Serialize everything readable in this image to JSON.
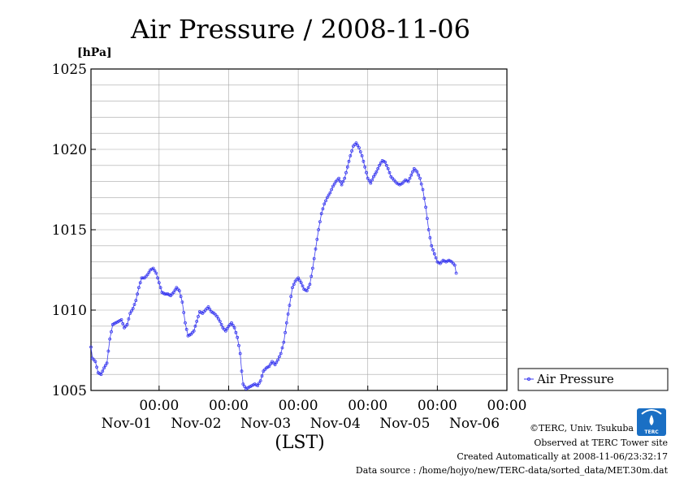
{
  "chart_data": {
    "type": "line",
    "title": "Air Pressure / 2008-11-06",
    "unit_label": "[hPa]",
    "xlabel": "(LST)",
    "ylim": [
      1005,
      1025
    ],
    "y_ticks": [
      "1005",
      "1010",
      "1015",
      "1020",
      "1025"
    ],
    "x_ticks": [
      {
        "time": "00:00",
        "date": "Nov-01",
        "hours": 0
      },
      {
        "time": "00:00",
        "date": "Nov-02",
        "hours": 24
      },
      {
        "time": "00:00",
        "date": "Nov-03",
        "hours": 48
      },
      {
        "time": "00:00",
        "date": "Nov-04",
        "hours": 72
      },
      {
        "time": "00:00",
        "date": "Nov-05",
        "hours": 96
      },
      {
        "time": "00:00",
        "date": "Nov-06",
        "hours": 120
      }
    ],
    "xlim_hours": [
      -23.5,
      120
    ],
    "grid": true,
    "legend_position": "right",
    "series": [
      {
        "name": "Air Pressure",
        "color": "#3a3af0",
        "keypoints": [
          [
            -23.5,
            1007.7
          ],
          [
            -23,
            1007.0
          ],
          [
            -22,
            1006.8
          ],
          [
            -21,
            1006.1
          ],
          [
            -20,
            1006.0
          ],
          [
            -19,
            1006.4
          ],
          [
            -18,
            1006.7
          ],
          [
            -17,
            1008.2
          ],
          [
            -16,
            1009.1
          ],
          [
            -15,
            1009.2
          ],
          [
            -14,
            1009.3
          ],
          [
            -13,
            1009.4
          ],
          [
            -12,
            1008.9
          ],
          [
            -11,
            1009.1
          ],
          [
            -10,
            1009.8
          ],
          [
            -9,
            1010.1
          ],
          [
            -8,
            1010.6
          ],
          [
            -7,
            1011.4
          ],
          [
            -6,
            1012.0
          ],
          [
            -5,
            1012.0
          ],
          [
            -4,
            1012.2
          ],
          [
            -3,
            1012.5
          ],
          [
            -2,
            1012.6
          ],
          [
            -1,
            1012.3
          ],
          [
            0,
            1011.7
          ],
          [
            1,
            1011.1
          ],
          [
            2,
            1011.0
          ],
          [
            3,
            1011.0
          ],
          [
            4,
            1010.9
          ],
          [
            5,
            1011.1
          ],
          [
            6,
            1011.4
          ],
          [
            7,
            1011.2
          ],
          [
            8,
            1010.5
          ],
          [
            9,
            1009.2
          ],
          [
            10,
            1008.4
          ],
          [
            11,
            1008.5
          ],
          [
            12,
            1008.7
          ],
          [
            13,
            1009.3
          ],
          [
            14,
            1009.9
          ],
          [
            15,
            1009.8
          ],
          [
            16,
            1010.0
          ],
          [
            17,
            1010.2
          ],
          [
            18,
            1009.9
          ],
          [
            19,
            1009.8
          ],
          [
            20,
            1009.6
          ],
          [
            21,
            1009.3
          ],
          [
            22,
            1008.9
          ],
          [
            23,
            1008.7
          ],
          [
            24,
            1009.0
          ],
          [
            25,
            1009.2
          ],
          [
            26,
            1008.9
          ],
          [
            27,
            1008.3
          ],
          [
            28,
            1007.3
          ],
          [
            28.5,
            1006.2
          ],
          [
            29,
            1005.4
          ],
          [
            30,
            1005.1
          ],
          [
            31,
            1005.2
          ],
          [
            32,
            1005.3
          ],
          [
            33,
            1005.4
          ],
          [
            34,
            1005.3
          ],
          [
            35,
            1005.6
          ],
          [
            36,
            1006.2
          ],
          [
            37,
            1006.4
          ],
          [
            38,
            1006.5
          ],
          [
            39,
            1006.8
          ],
          [
            40,
            1006.6
          ],
          [
            41,
            1006.9
          ],
          [
            42,
            1007.3
          ],
          [
            43,
            1008.0
          ],
          [
            44,
            1009.2
          ],
          [
            45,
            1010.3
          ],
          [
            46,
            1011.4
          ],
          [
            47,
            1011.8
          ],
          [
            48,
            1012.0
          ],
          [
            49,
            1011.7
          ],
          [
            50,
            1011.3
          ],
          [
            51,
            1011.2
          ],
          [
            52,
            1011.6
          ],
          [
            53,
            1012.6
          ],
          [
            54,
            1013.8
          ],
          [
            55,
            1015.0
          ],
          [
            56,
            1016.0
          ],
          [
            57,
            1016.6
          ],
          [
            58,
            1017.0
          ],
          [
            59,
            1017.3
          ],
          [
            60,
            1017.7
          ],
          [
            61,
            1018.0
          ],
          [
            62,
            1018.2
          ],
          [
            63,
            1017.8
          ],
          [
            64,
            1018.2
          ],
          [
            65,
            1018.9
          ],
          [
            66,
            1019.6
          ],
          [
            67,
            1020.2
          ],
          [
            68,
            1020.4
          ],
          [
            69,
            1020.1
          ],
          [
            70,
            1019.6
          ],
          [
            71,
            1018.9
          ],
          [
            72,
            1018.2
          ],
          [
            73,
            1017.9
          ],
          [
            74,
            1018.3
          ],
          [
            75,
            1018.6
          ],
          [
            76,
            1019.0
          ],
          [
            77,
            1019.3
          ],
          [
            78,
            1019.2
          ],
          [
            79,
            1018.8
          ],
          [
            80,
            1018.3
          ],
          [
            81,
            1018.1
          ],
          [
            82,
            1017.9
          ],
          [
            83,
            1017.8
          ],
          [
            84,
            1017.9
          ],
          [
            85,
            1018.1
          ],
          [
            86,
            1018.0
          ],
          [
            87,
            1018.4
          ],
          [
            88,
            1018.8
          ],
          [
            89,
            1018.6
          ],
          [
            90,
            1018.2
          ],
          [
            91,
            1017.5
          ],
          [
            92,
            1016.4
          ],
          [
            93,
            1015.0
          ],
          [
            94,
            1014.0
          ],
          [
            95,
            1013.5
          ],
          [
            96,
            1013.0
          ],
          [
            97,
            1012.9
          ],
          [
            98,
            1013.1
          ],
          [
            99,
            1013.0
          ],
          [
            100,
            1013.1
          ],
          [
            101,
            1013.0
          ],
          [
            102,
            1012.8
          ],
          [
            102.5,
            1012.3
          ]
        ]
      }
    ]
  },
  "footer": {
    "copyright": "©TERC, Univ. Tsukuba",
    "observed": "Observed at TERC Tower site",
    "created": "Created Automatically at 2008-11-06/23:32:17",
    "source": "Data source : /home/hojyo/new/TERC-data/sorted_data/MET.30m.dat"
  },
  "logo": {
    "text": "TERC",
    "color": "#1a6fc4"
  }
}
